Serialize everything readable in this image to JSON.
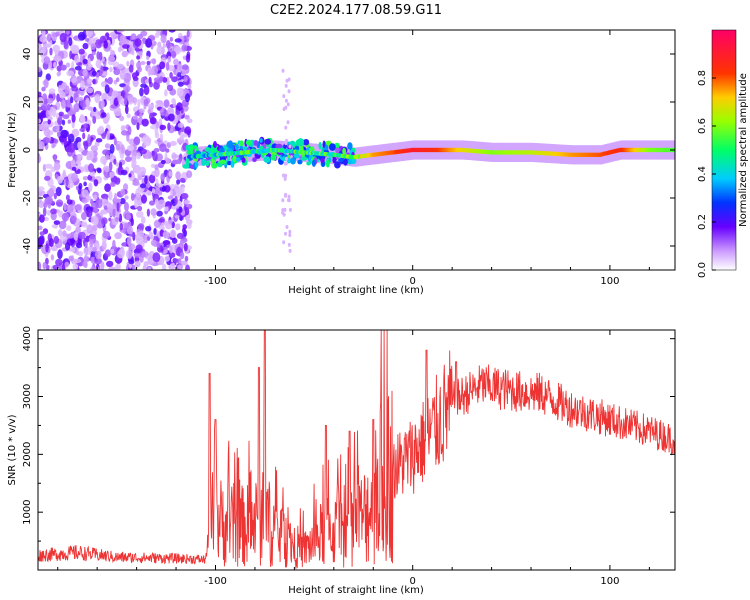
{
  "chart_data": [
    {
      "type": "heatmap",
      "title": "C2E2.2024.177.08.59.G11",
      "xlabel": "Height of straight line (km)",
      "ylabel": "Frequency (Hz)",
      "xlim": [
        -190,
        133
      ],
      "ylim": [
        -50,
        50
      ],
      "xticks": [
        -100,
        0,
        100
      ],
      "yticks": [
        -40,
        -20,
        0,
        20,
        40
      ],
      "colorbar": {
        "label": "Normalized spectral amplitude",
        "range": [
          0,
          1
        ],
        "ticks": [
          0.0,
          0.2,
          0.4,
          0.6,
          0.8
        ]
      },
      "ridge": [
        {
          "x": -115,
          "y": -3,
          "amp": 0.35
        },
        {
          "x": -100,
          "y": -2,
          "amp": 0.45
        },
        {
          "x": -85,
          "y": -1,
          "amp": 0.5
        },
        {
          "x": -70,
          "y": 0,
          "amp": 0.45
        },
        {
          "x": -55,
          "y": -1,
          "amp": 0.5
        },
        {
          "x": -40,
          "y": -2,
          "amp": 0.5
        },
        {
          "x": -30,
          "y": -3,
          "amp": 0.55
        },
        {
          "x": -20,
          "y": -2,
          "amp": 0.75
        },
        {
          "x": -10,
          "y": -1,
          "amp": 0.8
        },
        {
          "x": 0,
          "y": 0,
          "amp": 0.9
        },
        {
          "x": 10,
          "y": 0,
          "amp": 0.85
        },
        {
          "x": 25,
          "y": 0,
          "amp": 0.7
        },
        {
          "x": 40,
          "y": -1,
          "amp": 0.6
        },
        {
          "x": 60,
          "y": -1,
          "amp": 0.65
        },
        {
          "x": 80,
          "y": -2,
          "amp": 0.75
        },
        {
          "x": 95,
          "y": -2,
          "amp": 0.8
        },
        {
          "x": 105,
          "y": 0,
          "amp": 0.85
        },
        {
          "x": 120,
          "y": 0,
          "amp": 0.6
        },
        {
          "x": 133,
          "y": 0,
          "amp": 0.55
        }
      ]
    },
    {
      "type": "line",
      "xlabel": "Height of straight line (km)",
      "ylabel": "SNR (10 * v/v)",
      "xlim": [
        -190,
        133
      ],
      "ylim": [
        0,
        4150
      ],
      "xticks": [
        -100,
        0,
        100
      ],
      "yticks": [
        1000,
        2000,
        3000,
        4000
      ],
      "color": "#ee3333",
      "envelope": [
        {
          "x": -190,
          "y": 250
        },
        {
          "x": -170,
          "y": 300
        },
        {
          "x": -150,
          "y": 220
        },
        {
          "x": -120,
          "y": 200
        },
        {
          "x": -105,
          "y": 180
        },
        {
          "x": -102,
          "y": 900
        },
        {
          "x": -95,
          "y": 800
        },
        {
          "x": -85,
          "y": 750
        },
        {
          "x": -75,
          "y": 900
        },
        {
          "x": -65,
          "y": 500
        },
        {
          "x": -55,
          "y": 350
        },
        {
          "x": -45,
          "y": 650
        },
        {
          "x": -35,
          "y": 700
        },
        {
          "x": -25,
          "y": 900
        },
        {
          "x": -15,
          "y": 1600
        },
        {
          "x": 0,
          "y": 2000
        },
        {
          "x": 10,
          "y": 2400
        },
        {
          "x": 20,
          "y": 2900
        },
        {
          "x": 35,
          "y": 3200
        },
        {
          "x": 50,
          "y": 3100
        },
        {
          "x": 65,
          "y": 3050
        },
        {
          "x": 80,
          "y": 2800
        },
        {
          "x": 100,
          "y": 2600
        },
        {
          "x": 120,
          "y": 2400
        },
        {
          "x": 133,
          "y": 2250
        }
      ],
      "peaks": [
        {
          "x": -103,
          "y": 3400
        },
        {
          "x": -100,
          "y": 2600
        },
        {
          "x": -78,
          "y": 3500
        },
        {
          "x": -75,
          "y": 4150
        },
        {
          "x": -44,
          "y": 2500
        },
        {
          "x": -32,
          "y": 2400
        },
        {
          "x": -20,
          "y": 2600
        },
        {
          "x": 7,
          "y": 3800
        },
        {
          "x": 22,
          "y": 3600
        }
      ]
    }
  ]
}
